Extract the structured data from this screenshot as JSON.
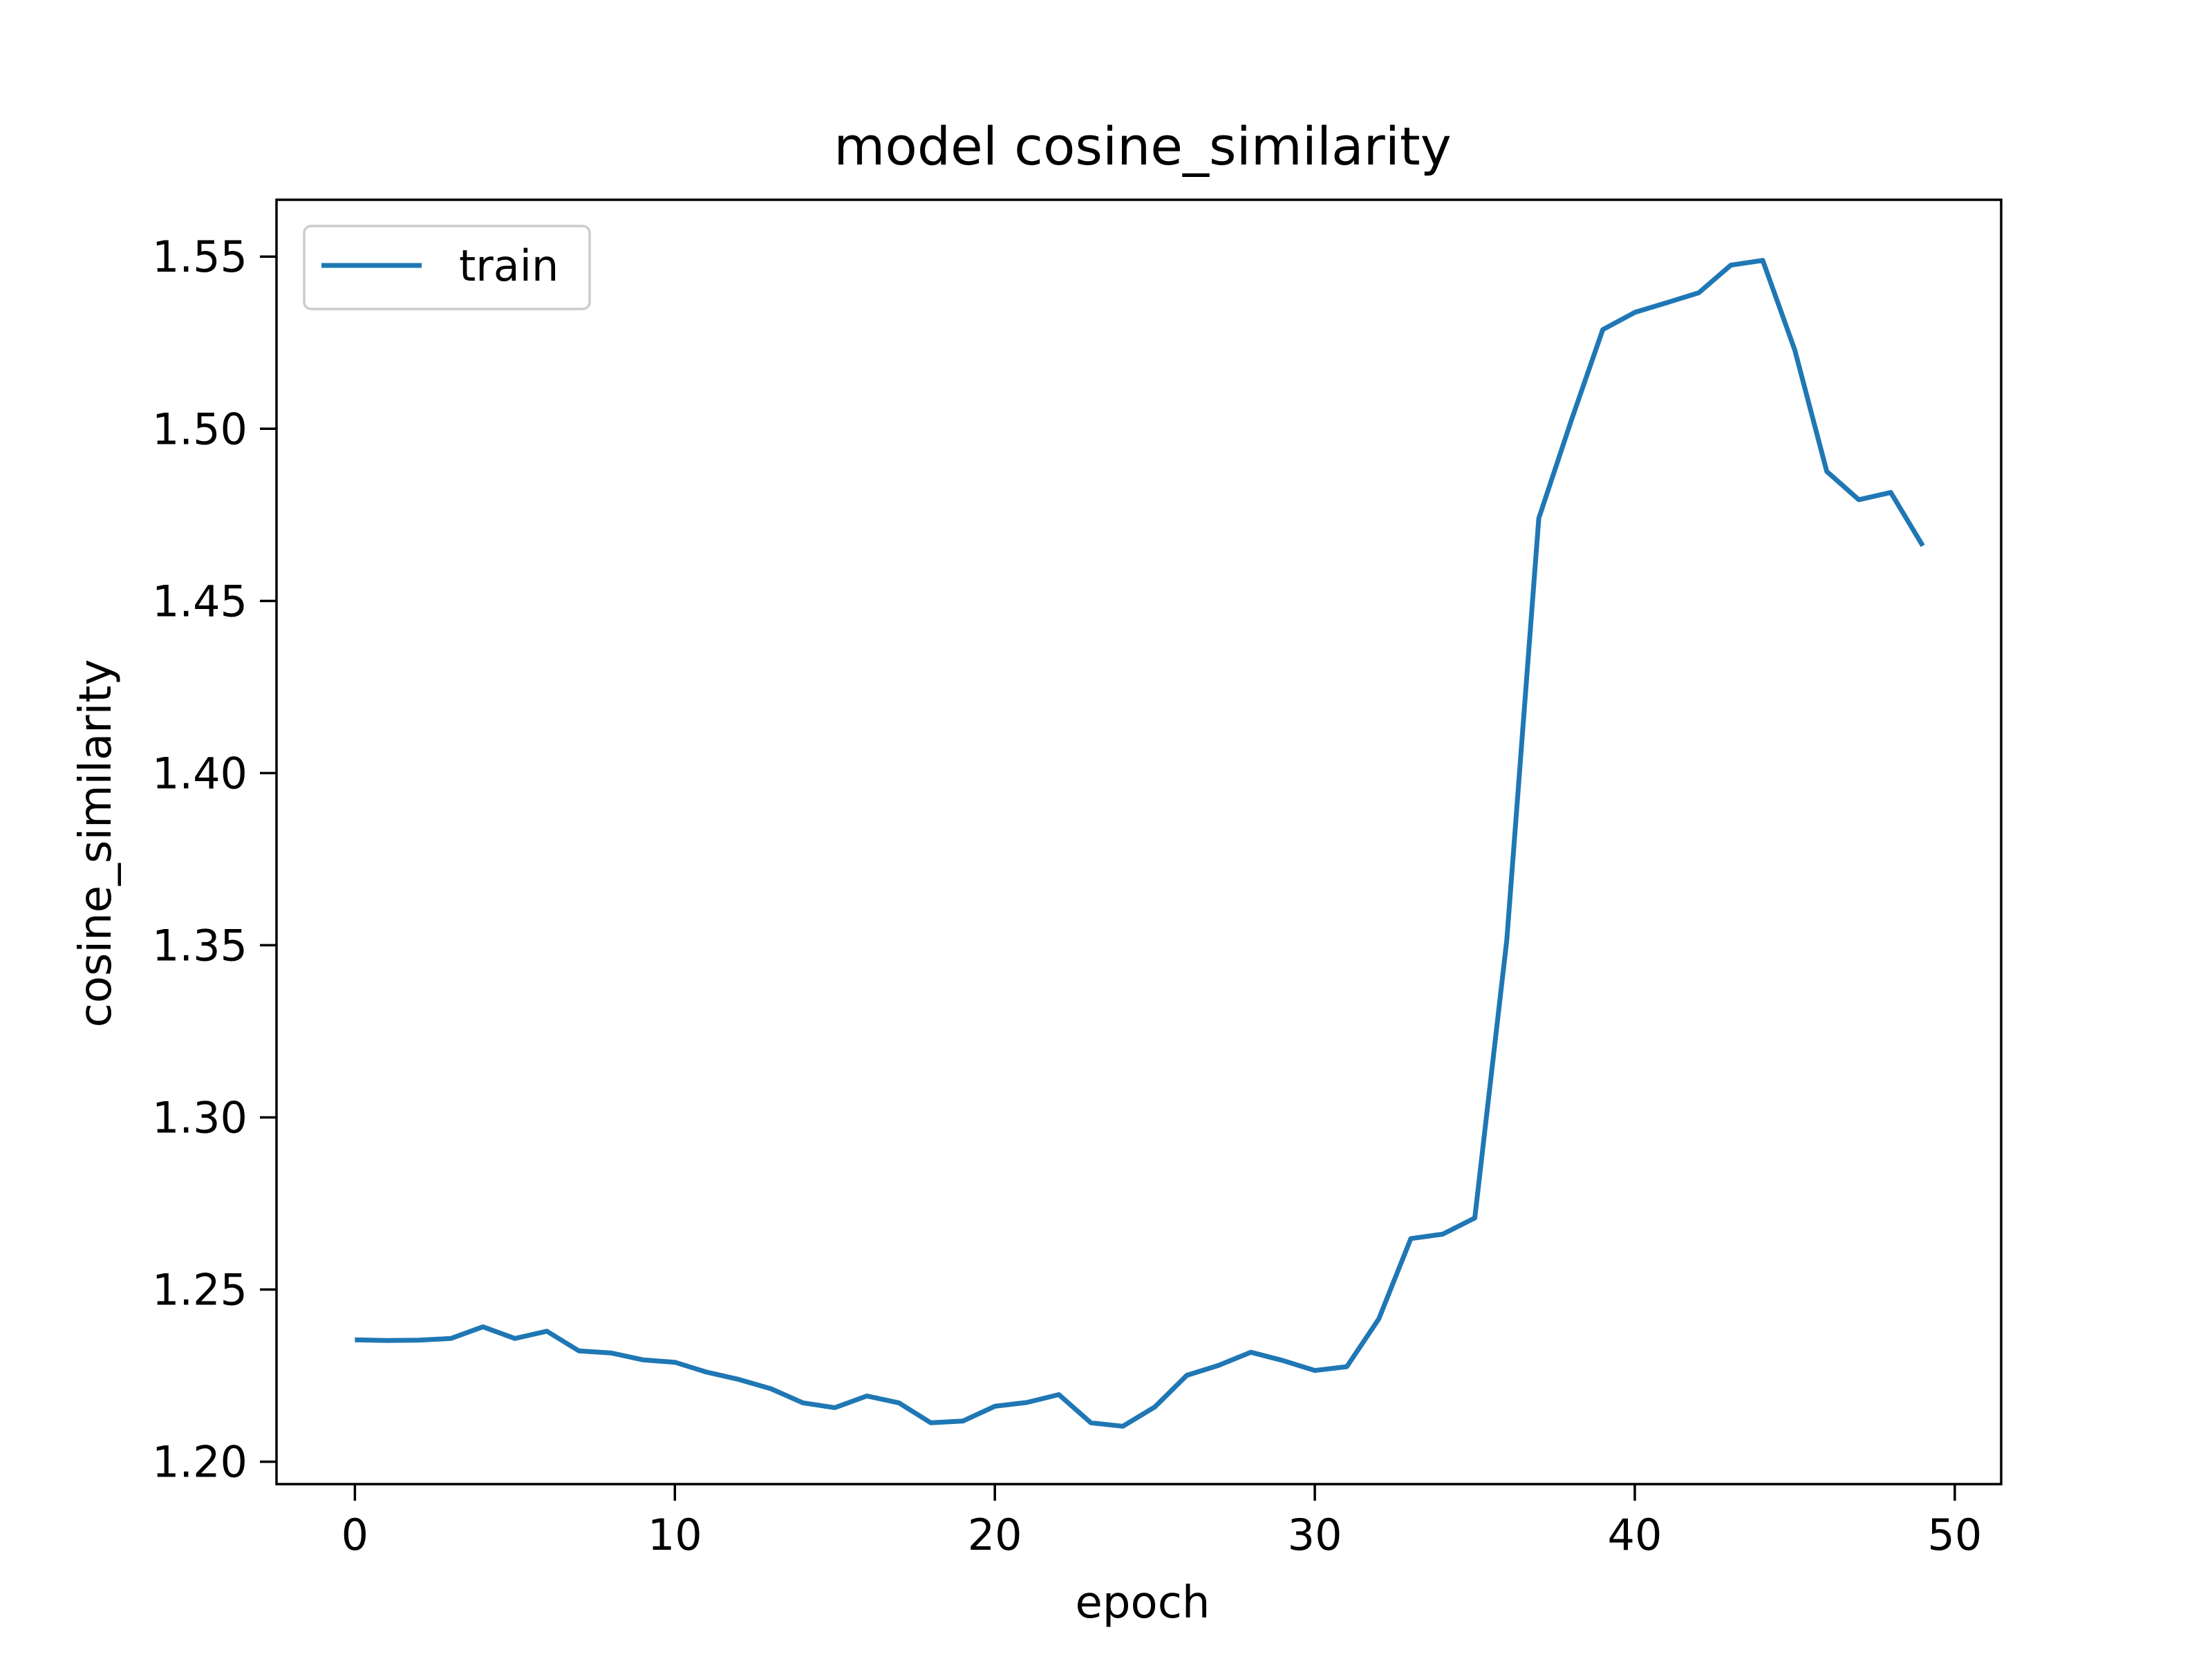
{
  "chart_data": {
    "type": "line",
    "title": "model cosine_similarity",
    "xlabel": "epoch",
    "ylabel": "cosine_similarity",
    "xlim": [
      -2.45,
      51.45
    ],
    "ylim": [
      1.1935,
      1.5665
    ],
    "xticks": [
      0,
      10,
      20,
      30,
      40,
      50
    ],
    "yticks": [
      1.2,
      1.25,
      1.3,
      1.35,
      1.4,
      1.45,
      1.5,
      1.55
    ],
    "xtick_labels": [
      "0",
      "10",
      "20",
      "30",
      "40",
      "50"
    ],
    "ytick_labels": [
      "1.20",
      "1.25",
      "1.30",
      "1.35",
      "1.40",
      "1.45",
      "1.50",
      "1.55"
    ],
    "grid": false,
    "legend": {
      "position": "top-left"
    },
    "series": [
      {
        "name": "train",
        "color": "#1f77b4",
        "x": [
          0,
          1,
          2,
          3,
          4,
          5,
          6,
          7,
          8,
          9,
          10,
          11,
          12,
          13,
          14,
          15,
          16,
          17,
          18,
          19,
          20,
          21,
          22,
          23,
          24,
          25,
          26,
          27,
          28,
          29,
          30,
          31,
          32,
          33,
          34,
          35,
          36,
          37,
          38,
          39,
          40,
          41,
          42,
          43,
          44,
          45,
          46,
          47,
          48,
          49
        ],
        "values": [
          1.2354,
          1.2352,
          1.2353,
          1.2358,
          1.2392,
          1.2358,
          1.2379,
          1.2322,
          1.2316,
          1.2296,
          1.2289,
          1.226,
          1.2239,
          1.2212,
          1.2171,
          1.2157,
          1.2191,
          1.2171,
          1.2113,
          1.2118,
          1.2161,
          1.2172,
          1.2195,
          1.2113,
          1.2103,
          1.2159,
          1.2251,
          1.228,
          1.2318,
          1.2294,
          1.2265,
          1.2276,
          1.2415,
          1.2648,
          1.2661,
          1.2708,
          1.3515,
          1.474,
          1.502,
          1.5288,
          1.5338,
          1.5366,
          1.5395,
          1.5475,
          1.5489,
          1.5229,
          1.4876,
          1.4794,
          1.4815,
          1.466
        ]
      }
    ]
  }
}
